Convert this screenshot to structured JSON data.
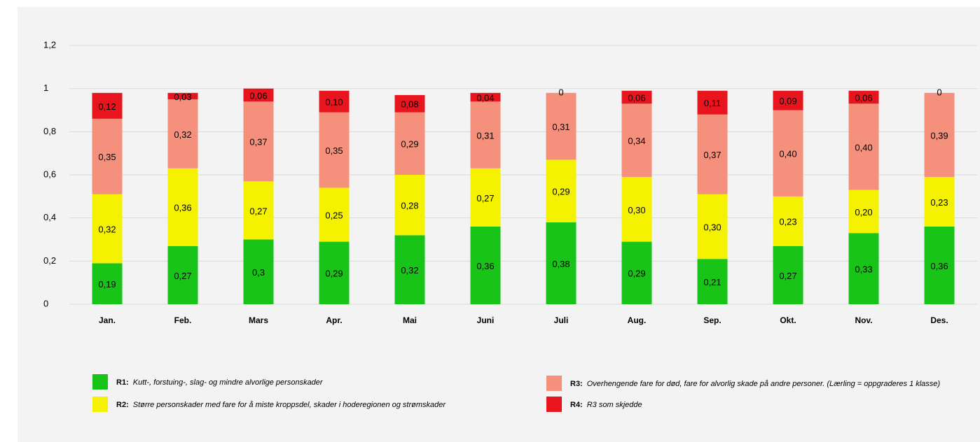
{
  "chart_data": {
    "type": "stacked_bar",
    "categories": [
      "Jan.",
      "Feb.",
      "Mars",
      "Apr.",
      "Mai",
      "Juni",
      "Juli",
      "Aug.",
      "Sep.",
      "Okt.",
      "Nov.",
      "Des."
    ],
    "series": [
      {
        "name": "R1:",
        "description": "Kutt-, forstuing-, slag- og mindre alvorlige personskader",
        "color": "#19c419",
        "values": [
          0.19,
          0.27,
          0.3,
          0.29,
          0.32,
          0.36,
          0.38,
          0.29,
          0.21,
          0.27,
          0.33,
          0.36
        ],
        "value_labels": [
          "0,19",
          "0,27",
          "0,3",
          "0,29",
          "0,32",
          "0,36",
          "0,38",
          "0,29",
          "0,21",
          "0,27",
          "0,33",
          "0,36"
        ]
      },
      {
        "name": "R2:",
        "description": "Større personskader med fare for å miste kroppsdel, skader i hoderegionen og strømskader",
        "color": "#f5f200",
        "values": [
          0.32,
          0.36,
          0.27,
          0.25,
          0.28,
          0.27,
          0.29,
          0.3,
          0.3,
          0.23,
          0.2,
          0.23
        ],
        "value_labels": [
          "0,32",
          "0,36",
          "0,27",
          "0,25",
          "0,28",
          "0,27",
          "0,29",
          "0,30",
          "0,30",
          "0,23",
          "0,20",
          "0,23"
        ]
      },
      {
        "name": "R3:",
        "description": "Overhengende fare for død, fare for alvorlig skade på andre personer. (Lærling = oppgraderes 1 klasse)",
        "color": "#f4907c",
        "values": [
          0.35,
          0.32,
          0.37,
          0.35,
          0.29,
          0.31,
          0.31,
          0.34,
          0.37,
          0.4,
          0.4,
          0.39
        ],
        "value_labels": [
          "0,35",
          "0,32",
          "0,37",
          "0,35",
          "0,29",
          "0,31",
          "0,31",
          "0,34",
          "0,37",
          "0,40",
          "0,40",
          "0,39"
        ]
      },
      {
        "name": "R4:",
        "description": "R3 som skjedde",
        "color": "#e8141e",
        "values": [
          0.12,
          0.03,
          0.06,
          0.1,
          0.08,
          0.04,
          0,
          0.06,
          0.11,
          0.09,
          0.06,
          0
        ],
        "value_labels": [
          "0,12",
          "0,03",
          "0,06",
          "0,10",
          "0,08",
          "0,04",
          "0",
          "0,06",
          "0,11",
          "0,09",
          "0,06",
          "0"
        ]
      }
    ],
    "ylim": [
      0,
      1.2
    ],
    "yticks": [
      0,
      {
        "value": 0.2,
        "label": "0,2"
      },
      {
        "value": 0.4,
        "label": "0,4"
      },
      {
        "value": 0.6,
        "label": "0,6"
      },
      {
        "value": 0.8,
        "label": "0,8"
      },
      1,
      {
        "value": 1.2,
        "label": "1,2"
      }
    ],
    "grid": true
  }
}
